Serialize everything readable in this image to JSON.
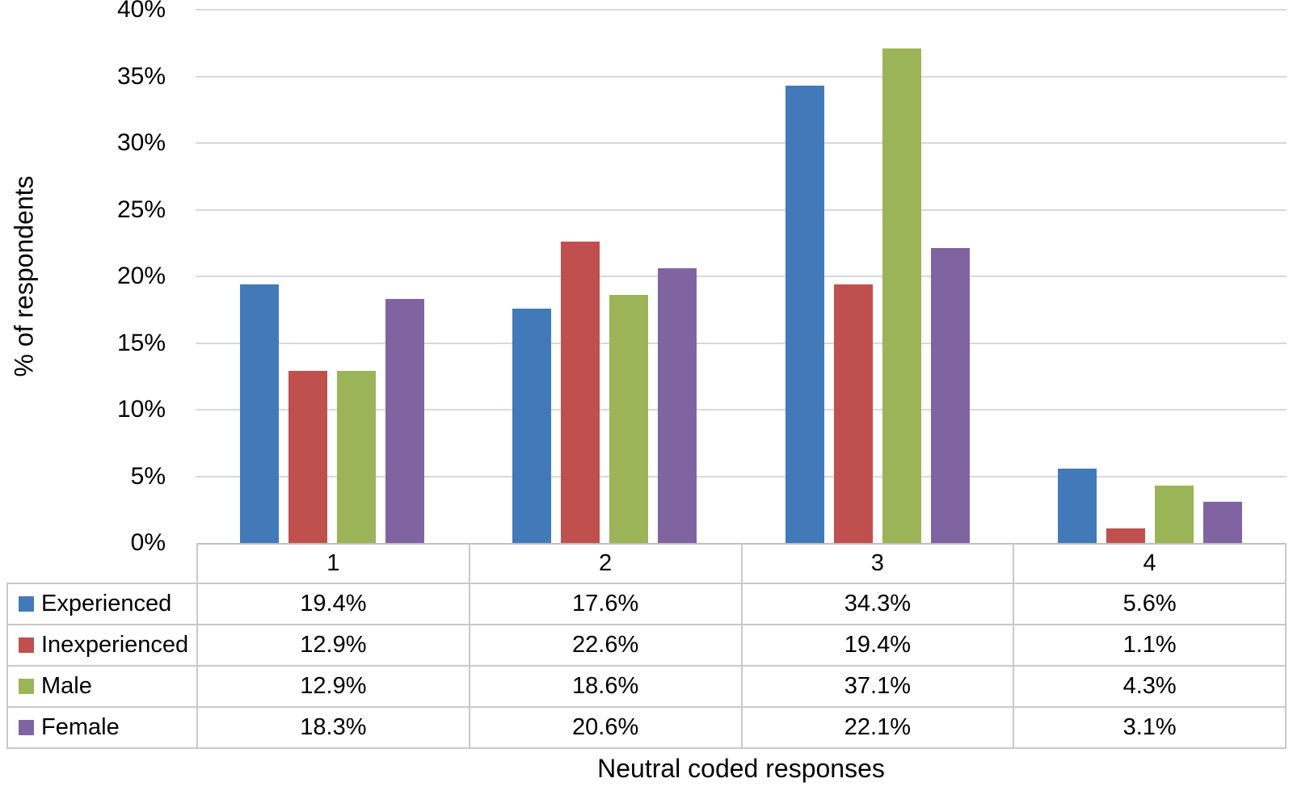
{
  "chart_data": {
    "type": "bar",
    "title": "",
    "xlabel": "Neutral coded responses",
    "ylabel": "% of respondents",
    "categories": [
      "1",
      "2",
      "3",
      "4"
    ],
    "series": [
      {
        "name": "Experienced",
        "color": "#427AB9",
        "values": [
          19.4,
          17.6,
          34.3,
          5.6
        ],
        "display": [
          "19.4%",
          "17.6%",
          "34.3%",
          "5.6%"
        ]
      },
      {
        "name": "Inexperienced",
        "color": "#C0504D",
        "values": [
          12.9,
          22.6,
          19.4,
          1.1
        ],
        "display": [
          "12.9%",
          "22.6%",
          "19.4%",
          "1.1%"
        ]
      },
      {
        "name": "Male",
        "color": "#9BB457",
        "values": [
          12.9,
          18.6,
          37.1,
          4.3
        ],
        "display": [
          "12.9%",
          "18.6%",
          "37.1%",
          "4.3%"
        ]
      },
      {
        "name": "Female",
        "color": "#8064A2",
        "values": [
          18.3,
          20.6,
          22.1,
          3.1
        ],
        "display": [
          "18.3%",
          "20.6%",
          "22.1%",
          "3.1%"
        ]
      }
    ],
    "ylim": [
      0,
      40
    ],
    "yticks": {
      "values": [
        0,
        5,
        10,
        15,
        20,
        25,
        30,
        35,
        40
      ],
      "labels": [
        "0%",
        "5%",
        "10%",
        "15%",
        "20%",
        "25%",
        "30%",
        "35%",
        "40%"
      ]
    },
    "grid": true,
    "gridline_color": "#d9d9d9",
    "legend_position": "data-table-left"
  }
}
